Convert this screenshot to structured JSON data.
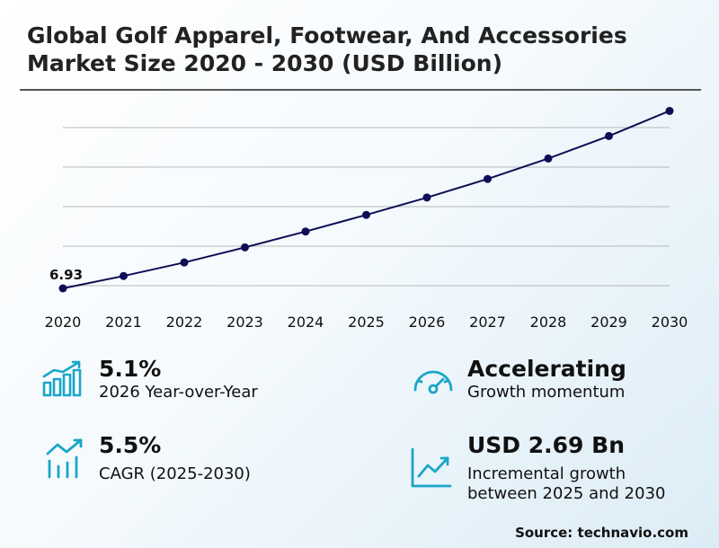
{
  "title": "Global Golf Apparel, Footwear, And Accessories Market Size 2020 - 2030 (USD Billion)",
  "chart_data": {
    "type": "line",
    "title": "Global Golf Apparel, Footwear, And Accessories Market Size 2020 - 2030 (USD Billion)",
    "x": [
      "2020",
      "2021",
      "2022",
      "2023",
      "2024",
      "2025",
      "2026",
      "2027",
      "2028",
      "2029",
      "2030"
    ],
    "series": [
      {
        "values": [
          6.93,
          7.25,
          7.6,
          7.99,
          8.4,
          8.83,
          9.28,
          9.76,
          10.29,
          10.87,
          11.52
        ]
      }
    ],
    "data_labels": [
      {
        "index": 0,
        "text": "6.93"
      }
    ],
    "ylim": [
      6.0,
      11.6
    ],
    "grid": true,
    "line_color": "#0d0d55"
  },
  "stats": {
    "yoy": {
      "value": "5.1%",
      "label": "2026 Year-over-Year",
      "icon": "bar-chart-growth-icon"
    },
    "momentum": {
      "value": "Accelerating",
      "label": "Growth momentum",
      "icon": "speedometer-icon"
    },
    "cagr": {
      "value": "5.5%",
      "label": "CAGR (2025-2030)",
      "icon": "trend-bars-icon"
    },
    "incremental": {
      "value": "USD 2.69 Bn",
      "label_line1": "Incremental growth",
      "label_line2": "between 2025 and 2030",
      "icon": "trend-chart-icon"
    }
  },
  "accent_color": "#1aa6c8",
  "source": "Source: technavio.com"
}
